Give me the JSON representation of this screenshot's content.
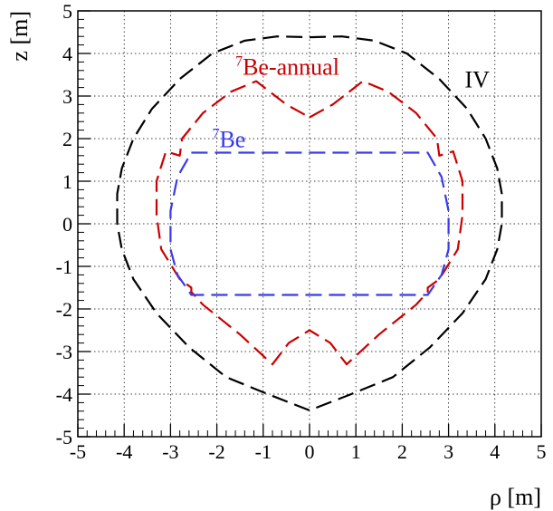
{
  "chart_data": {
    "type": "line",
    "xlabel": "ρ [m]",
    "ylabel": "z [m]",
    "xlim": [
      -5,
      5
    ],
    "ylim": [
      -5,
      5
    ],
    "grid": true,
    "x_ticks": [
      "-5",
      "-4",
      "-3",
      "-2",
      "-1",
      "0",
      "1",
      "2",
      "3",
      "4",
      "5"
    ],
    "y_ticks": [
      "-5",
      "-4",
      "-3",
      "-2",
      "-1",
      "0",
      "1",
      "2",
      "3",
      "4",
      "5"
    ],
    "series": [
      {
        "name": "IV",
        "color": "#000000",
        "dash": "long",
        "points": [
          [
            0.0,
            4.38
          ],
          [
            0.7,
            4.4
          ],
          [
            1.4,
            4.3
          ],
          [
            2.1,
            4.0
          ],
          [
            2.8,
            3.4
          ],
          [
            3.4,
            2.7
          ],
          [
            3.8,
            2.0
          ],
          [
            4.05,
            1.3
          ],
          [
            4.15,
            0.7
          ],
          [
            4.15,
            0.0
          ],
          [
            4.05,
            -0.6
          ],
          [
            3.8,
            -1.3
          ],
          [
            3.3,
            -2.1
          ],
          [
            2.6,
            -2.9
          ],
          [
            1.8,
            -3.6
          ],
          [
            0.9,
            -4.0
          ],
          [
            0.0,
            -4.38
          ],
          [
            -0.9,
            -4.0
          ],
          [
            -1.8,
            -3.6
          ],
          [
            -2.6,
            -2.9
          ],
          [
            -3.3,
            -2.1
          ],
          [
            -3.8,
            -1.3
          ],
          [
            -4.05,
            -0.6
          ],
          [
            -4.15,
            0.0
          ],
          [
            -4.15,
            0.7
          ],
          [
            -4.05,
            1.3
          ],
          [
            -3.8,
            2.0
          ],
          [
            -3.4,
            2.7
          ],
          [
            -2.8,
            3.4
          ],
          [
            -2.1,
            4.0
          ],
          [
            -1.4,
            4.3
          ],
          [
            -0.7,
            4.4
          ],
          [
            0.0,
            4.38
          ]
        ]
      },
      {
        "name": "7Be-annual",
        "color": "#cc0000",
        "dash": "long",
        "points": [
          [
            0.0,
            2.5
          ],
          [
            0.5,
            2.8
          ],
          [
            1.15,
            3.35
          ],
          [
            1.7,
            3.1
          ],
          [
            2.3,
            2.6
          ],
          [
            2.75,
            2.0
          ],
          [
            2.8,
            1.6
          ],
          [
            3.1,
            1.7
          ],
          [
            3.3,
            1.0
          ],
          [
            3.3,
            0.2
          ],
          [
            3.2,
            -0.6
          ],
          [
            2.8,
            -1.3
          ],
          [
            2.55,
            -1.5
          ],
          [
            2.55,
            -1.6
          ],
          [
            2.3,
            -1.9
          ],
          [
            1.5,
            -2.6
          ],
          [
            0.8,
            -3.3
          ],
          [
            0.45,
            -2.8
          ],
          [
            0.0,
            -2.5
          ],
          [
            -0.45,
            -2.8
          ],
          [
            -0.8,
            -3.3
          ],
          [
            -1.5,
            -2.6
          ],
          [
            -2.3,
            -1.9
          ],
          [
            -2.55,
            -1.6
          ],
          [
            -2.55,
            -1.5
          ],
          [
            -2.8,
            -1.3
          ],
          [
            -3.2,
            -0.6
          ],
          [
            -3.3,
            0.2
          ],
          [
            -3.3,
            1.0
          ],
          [
            -3.1,
            1.7
          ],
          [
            -2.8,
            1.6
          ],
          [
            -2.75,
            2.0
          ],
          [
            -2.3,
            2.6
          ],
          [
            -1.7,
            3.1
          ],
          [
            -1.15,
            3.35
          ],
          [
            -0.5,
            2.8
          ],
          [
            0.0,
            2.5
          ]
        ]
      },
      {
        "name": "7Be",
        "color": "#3a3aee",
        "dash": "long",
        "points": [
          [
            -2.55,
            1.67
          ],
          [
            2.55,
            1.67
          ],
          [
            2.85,
            1.1
          ],
          [
            3.0,
            0.3
          ],
          [
            3.0,
            -0.6
          ],
          [
            2.85,
            -1.2
          ],
          [
            2.55,
            -1.67
          ],
          [
            -2.55,
            -1.67
          ],
          [
            -2.85,
            -1.2
          ],
          [
            -3.0,
            -0.6
          ],
          [
            -3.0,
            0.3
          ],
          [
            -2.85,
            1.1
          ],
          [
            -2.55,
            1.67
          ]
        ]
      }
    ],
    "annotations": [
      {
        "sup": "7",
        "text": "Be-annual",
        "color": "#cc0000",
        "x": -1.6,
        "y": 3.5
      },
      {
        "sup": "7",
        "text": "Be",
        "color": "#3a3aee",
        "x": -2.1,
        "y": 1.8
      },
      {
        "sup": "",
        "text": "IV",
        "color": "#000000",
        "x": 3.35,
        "y": 3.2
      }
    ]
  }
}
